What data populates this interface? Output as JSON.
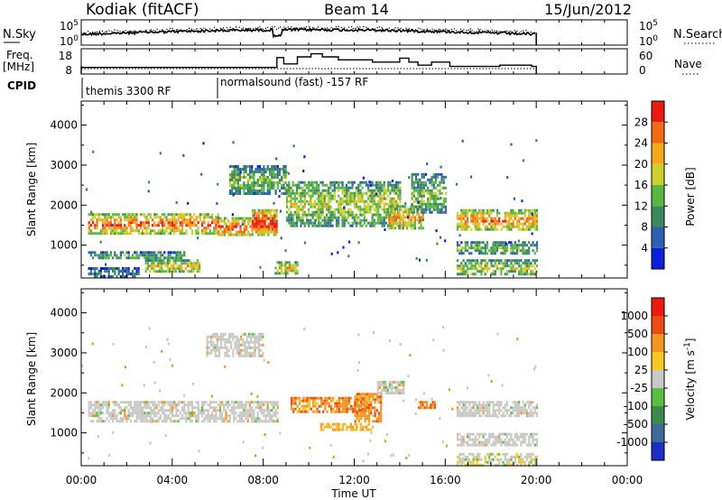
{
  "header": {
    "station": "Kodiak (fitACF)",
    "beam": "Beam 14",
    "date": "15/Jun/2012"
  },
  "top_panel": {
    "left_label": "N.Sky",
    "right_label": "N.Search",
    "left_ticks": [
      "10^5",
      "10^0"
    ],
    "right_ticks": [
      "10^5",
      "10^0"
    ]
  },
  "freq_panel": {
    "left_label_line1": "Freq.",
    "left_label_line2": "[MHz]",
    "right_label": "Nave",
    "left_ticks": [
      "18",
      "8"
    ],
    "right_ticks": [
      "60",
      "0"
    ],
    "freq_steps": [
      {
        "t0": 0.0,
        "t1": 6.0,
        "mhz": 10.6
      },
      {
        "t0": 6.0,
        "t1": 8.6,
        "mhz": 10.6
      },
      {
        "t0": 8.6,
        "t1": 8.9,
        "mhz": 14.5
      },
      {
        "t0": 8.9,
        "t1": 9.5,
        "mhz": 12.0
      },
      {
        "t0": 9.5,
        "t1": 10.1,
        "mhz": 14.8
      },
      {
        "t0": 10.1,
        "t1": 10.6,
        "mhz": 16.0
      },
      {
        "t0": 10.6,
        "t1": 11.3,
        "mhz": 14.8
      },
      {
        "t0": 11.3,
        "t1": 12.8,
        "mhz": 13.6
      },
      {
        "t0": 12.8,
        "t1": 14.0,
        "mhz": 12.7
      },
      {
        "t0": 14.0,
        "t1": 14.4,
        "mhz": 14.3
      },
      {
        "t0": 14.4,
        "t1": 14.8,
        "mhz": 12.7
      },
      {
        "t0": 14.8,
        "t1": 15.4,
        "mhz": 11.5
      },
      {
        "t0": 15.4,
        "t1": 16.2,
        "mhz": 12.7
      },
      {
        "t0": 16.2,
        "t1": 18.4,
        "mhz": 11.0
      },
      {
        "t0": 18.4,
        "t1": 19.8,
        "mhz": 11.5
      },
      {
        "t0": 19.8,
        "t1": 20.0,
        "mhz": 11.0
      }
    ]
  },
  "cpid_panel": {
    "label": "CPID",
    "segments": [
      {
        "t0": 0.0,
        "t1": 6.0,
        "text": "themis 3300 RF"
      },
      {
        "t0": 6.0,
        "t1": 24.0,
        "text": "normalsound (fast) -157 RF"
      }
    ]
  },
  "chart_data": [
    {
      "type": "heatmap",
      "quantity": "Power",
      "ylabel": "Slant Range [km]",
      "xlabel": "Time UT",
      "xlim_hours": [
        0,
        24
      ],
      "ylim_km": [
        180,
        4600
      ],
      "yticks": [
        1000,
        2000,
        3000,
        4000
      ],
      "xtick_labels": [
        "00:00",
        "04:00",
        "08:00",
        "12:00",
        "16:00",
        "20:00",
        "00:00"
      ],
      "colorbar_title": "Power [dB]",
      "colorbar_ticks": [
        "4",
        "8",
        "12",
        "16",
        "20",
        "24",
        "28"
      ],
      "colorbar_colors": [
        "#0a1fe0",
        "#2f5fb4",
        "#3b8a5e",
        "#58b83f",
        "#cbd02a",
        "#f6a818",
        "#f26a14",
        "#ee1a10"
      ],
      "echo_regions": [
        {
          "t0": 0.3,
          "t1": 6.0,
          "r0": 1300,
          "r1": 1800,
          "level": 0.8
        },
        {
          "t0": 6.0,
          "t1": 8.6,
          "r0": 1250,
          "r1": 1700,
          "level": 0.85
        },
        {
          "t0": 0.3,
          "t1": 4.5,
          "r0": 650,
          "r1": 850,
          "level": 0.35
        },
        {
          "t0": 2.8,
          "t1": 5.2,
          "r0": 350,
          "r1": 650,
          "level": 0.6
        },
        {
          "t0": 6.5,
          "t1": 9.0,
          "r0": 2300,
          "r1": 3000,
          "level": 0.4
        },
        {
          "t0": 9.0,
          "t1": 14.0,
          "r0": 1500,
          "r1": 2600,
          "level": 0.5
        },
        {
          "t0": 13.5,
          "t1": 15.0,
          "r0": 1400,
          "r1": 2000,
          "level": 0.7
        },
        {
          "t0": 14.5,
          "t1": 16.0,
          "r0": 1800,
          "r1": 2800,
          "level": 0.4
        },
        {
          "t0": 8.5,
          "t1": 9.5,
          "r0": 300,
          "r1": 600,
          "level": 0.6
        },
        {
          "t0": 16.5,
          "t1": 20.0,
          "r0": 1400,
          "r1": 1900,
          "level": 0.75
        },
        {
          "t0": 16.5,
          "t1": 20.0,
          "r0": 800,
          "r1": 1100,
          "level": 0.4
        },
        {
          "t0": 16.5,
          "t1": 20.0,
          "r0": 250,
          "r1": 650,
          "level": 0.5
        },
        {
          "t0": 0.3,
          "t1": 2.5,
          "r0": 200,
          "r1": 450,
          "level": 0.2
        },
        {
          "t0": 7.5,
          "t1": 8.6,
          "r0": 1300,
          "r1": 1900,
          "level": 0.95
        }
      ]
    },
    {
      "type": "heatmap",
      "quantity": "Velocity",
      "ylabel": "Slant Range [km]",
      "xlabel": "Time UT",
      "xlim_hours": [
        0,
        24
      ],
      "ylim_km": [
        180,
        4600
      ],
      "yticks": [
        1000,
        2000,
        3000,
        4000
      ],
      "xtick_labels": [
        "00:00",
        "04:00",
        "08:00",
        "12:00",
        "16:00",
        "20:00",
        "00:00"
      ],
      "colorbar_title": "Velocity [m s^-1]",
      "colorbar_ticks": [
        "1000",
        "500",
        "100",
        "25",
        "-25",
        "-100",
        "-500",
        "-1000"
      ],
      "colorbar_colors": [
        "#1a2fc8",
        "#3c6a9c",
        "#3c8a4c",
        "#58c040",
        "#c8c8c4",
        "#f6c820",
        "#f69420",
        "#ee4a14",
        "#ee1a10"
      ],
      "echo_regions": [
        {
          "t0": 0.3,
          "t1": 8.6,
          "r0": 1300,
          "r1": 1800,
          "kind": "gray"
        },
        {
          "t0": 5.5,
          "t1": 8.0,
          "r0": 2900,
          "r1": 3500,
          "kind": "gray"
        },
        {
          "t0": 9.2,
          "t1": 12.5,
          "r0": 1500,
          "r1": 1900,
          "kind": "neg"
        },
        {
          "t0": 12.0,
          "t1": 13.2,
          "r0": 1300,
          "r1": 2000,
          "kind": "neg"
        },
        {
          "t0": 10.5,
          "t1": 12.8,
          "r0": 1100,
          "r1": 1250,
          "kind": "negyel"
        },
        {
          "t0": 14.8,
          "t1": 15.5,
          "r0": 1600,
          "r1": 1800,
          "kind": "neg"
        },
        {
          "t0": 13.0,
          "t1": 14.2,
          "r0": 2000,
          "r1": 2300,
          "kind": "gray"
        },
        {
          "t0": 16.5,
          "t1": 20.0,
          "r0": 1400,
          "r1": 1800,
          "kind": "gray"
        },
        {
          "t0": 16.5,
          "t1": 20.0,
          "r0": 700,
          "r1": 1000,
          "kind": "gray"
        },
        {
          "t0": 16.5,
          "t1": 20.0,
          "r0": 200,
          "r1": 500,
          "kind": "grayyel"
        }
      ]
    }
  ]
}
